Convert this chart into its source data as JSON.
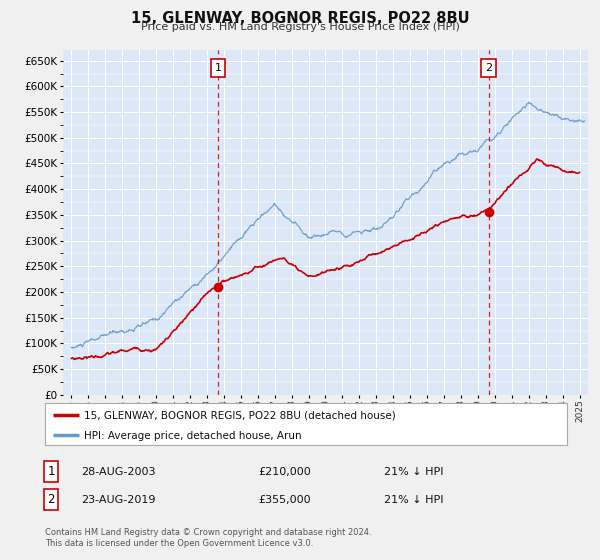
{
  "title": "15, GLENWAY, BOGNOR REGIS, PO22 8BU",
  "subtitle": "Price paid vs. HM Land Registry's House Price Index (HPI)",
  "bg_color": "#f0f0f0",
  "plot_bg_color": "#dce8f8",
  "ylim": [
    0,
    670000
  ],
  "xlim": [
    1994.5,
    2025.5
  ],
  "sale1_date": 2003.65,
  "sale1_price": 210000,
  "sale2_date": 2019.65,
  "sale2_price": 355000,
  "red_line_color": "#cc0000",
  "blue_line_color": "#6699cc",
  "vline_color": "#cc0000",
  "legend_label_red": "15, GLENWAY, BOGNOR REGIS, PO22 8BU (detached house)",
  "legend_label_blue": "HPI: Average price, detached house, Arun",
  "footer_text": "Contains HM Land Registry data © Crown copyright and database right 2024.\nThis data is licensed under the Open Government Licence v3.0.",
  "annotation1_date_str": "28-AUG-2003",
  "annotation1_price_str": "£210,000",
  "annotation1_hpi_str": "21% ↓ HPI",
  "annotation2_date_str": "23-AUG-2019",
  "annotation2_price_str": "£355,000",
  "annotation2_hpi_str": "21% ↓ HPI"
}
